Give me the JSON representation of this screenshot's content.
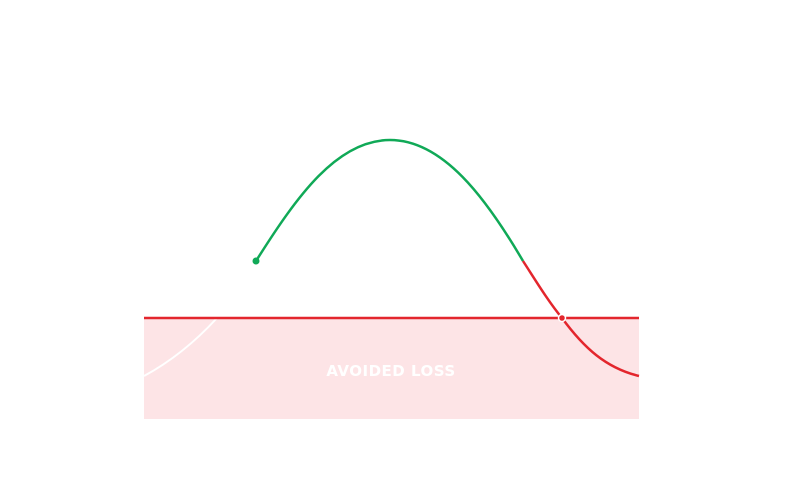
{
  "diagram": {
    "zone_label": "AVOIDED LOSS",
    "colors": {
      "gain_curve": "#10a957",
      "loss_curve": "#e3262d",
      "threshold_line": "#e3262d",
      "loss_zone_fill": "#fde4e6",
      "zone_label": "#ffffff",
      "faint_curve": "#ffffff"
    }
  }
}
